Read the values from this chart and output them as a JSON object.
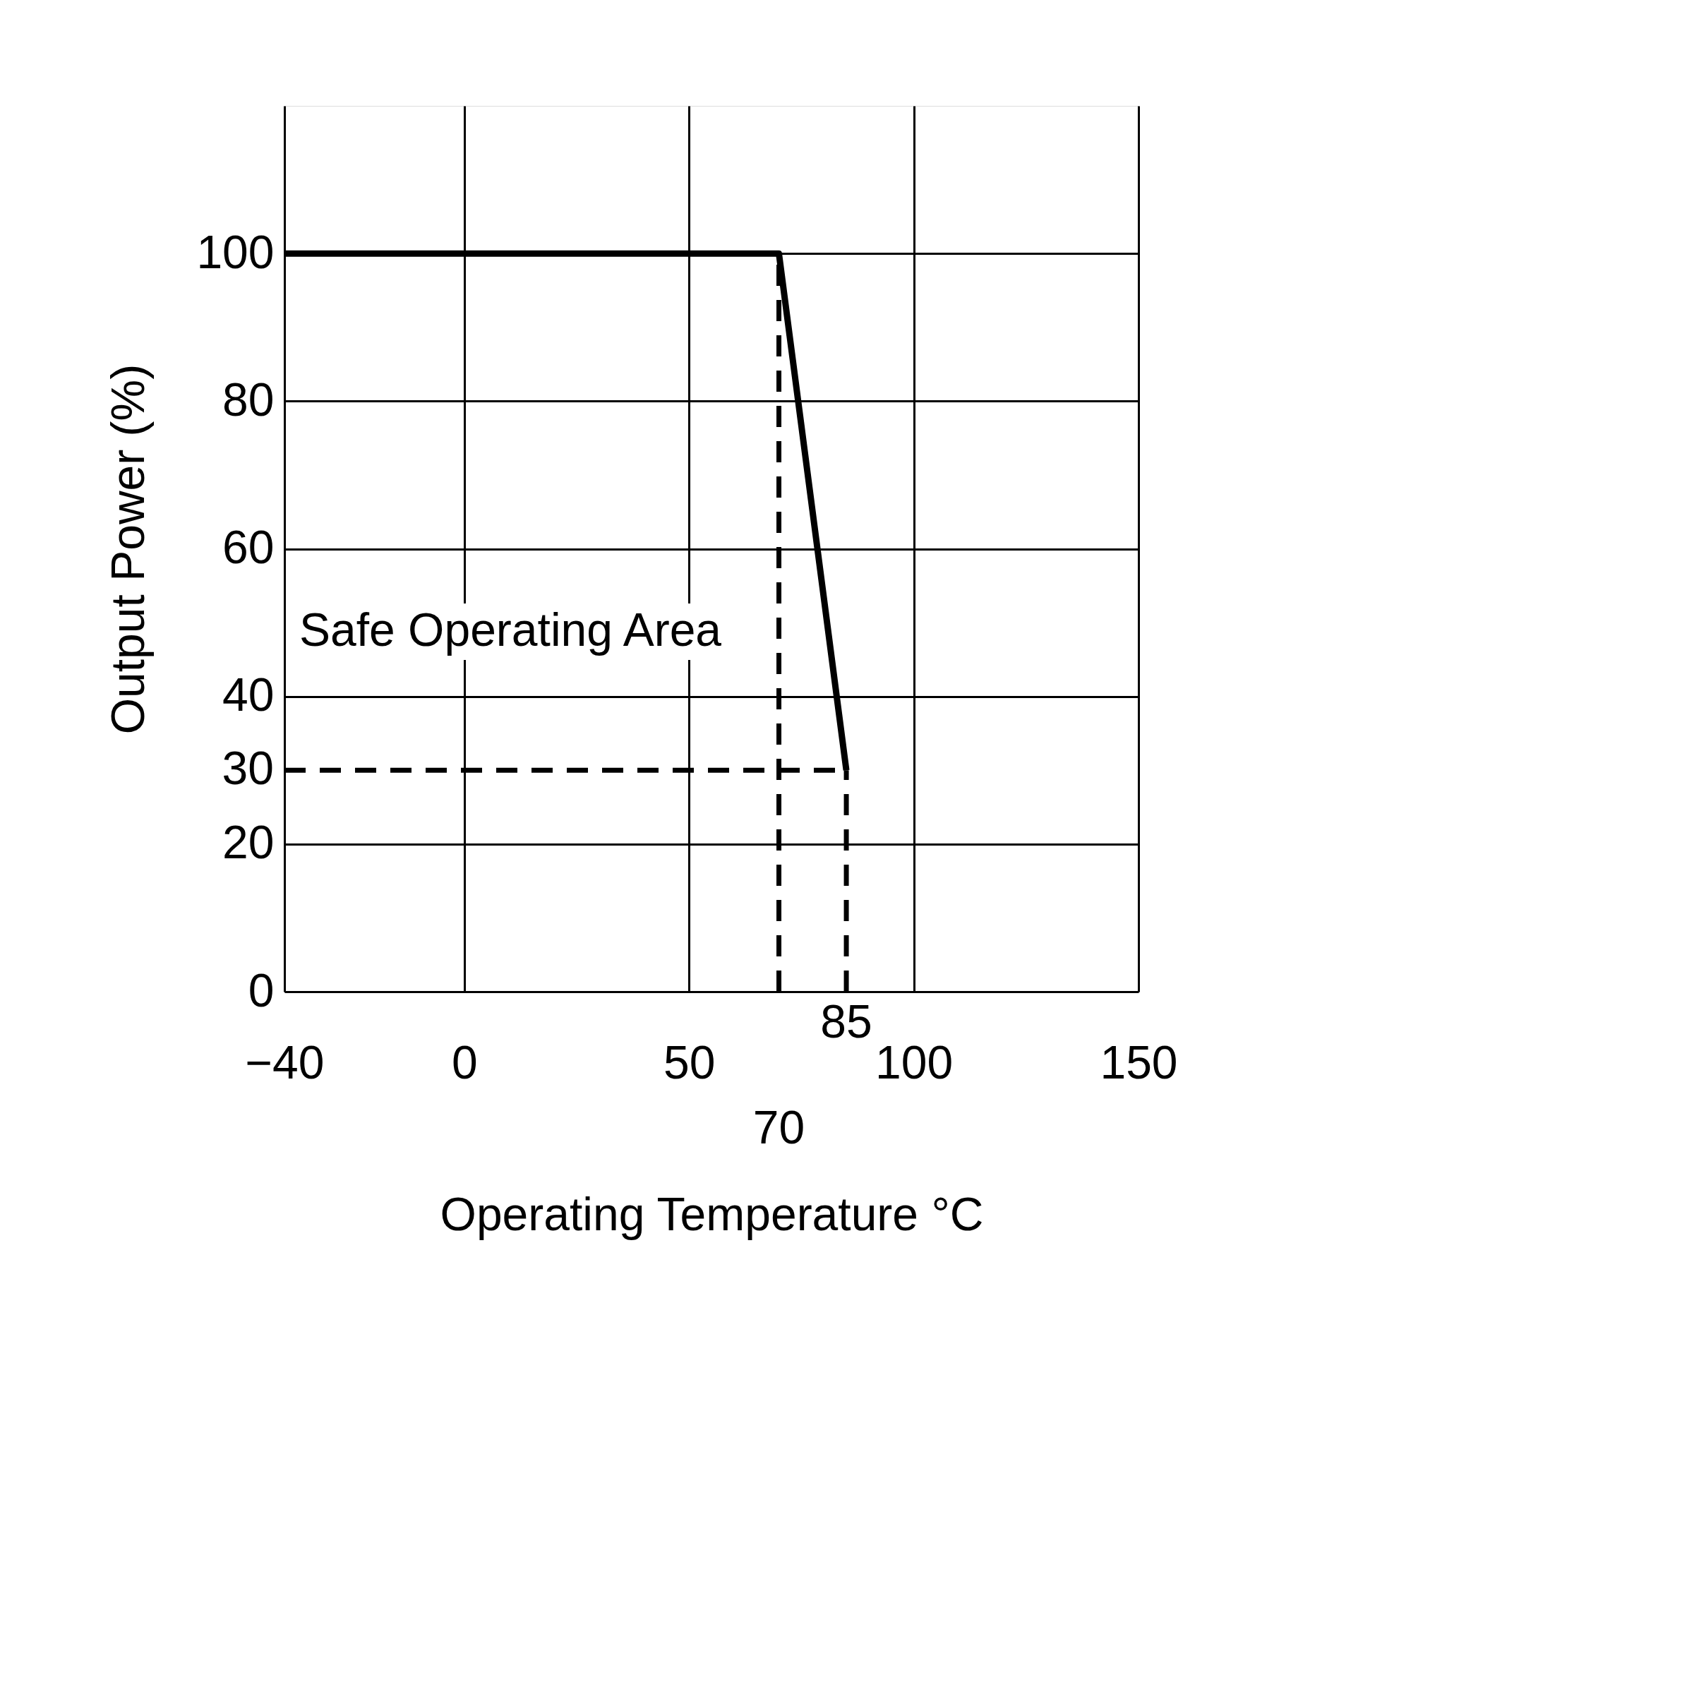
{
  "chart_data": {
    "type": "line",
    "xlabel": "Operating Temperature °C",
    "ylabel": "Output Power (%)",
    "xlim": [
      -40,
      150
    ],
    "ylim": [
      0,
      120
    ],
    "xticks": [
      -40,
      0,
      50,
      100,
      150
    ],
    "yticks": [
      0,
      20,
      40,
      60,
      80,
      100
    ],
    "grid": true,
    "series": [
      {
        "color": "#000000",
        "x": [
          -40,
          70,
          85
        ],
        "values": [
          100,
          100,
          30
        ]
      }
    ],
    "ref_lines": [
      {
        "axis": "x",
        "value": 70,
        "label": "70",
        "color": "#000000",
        "line_style": "dashed"
      },
      {
        "axis": "x",
        "value": 85,
        "label": "85",
        "color": "#000000",
        "line_style": "dashed"
      },
      {
        "axis": "y",
        "value": 30,
        "label": "30",
        "color": "#000000",
        "line_style": "dashed"
      }
    ],
    "annotations": [
      "Safe Operating Area"
    ]
  }
}
